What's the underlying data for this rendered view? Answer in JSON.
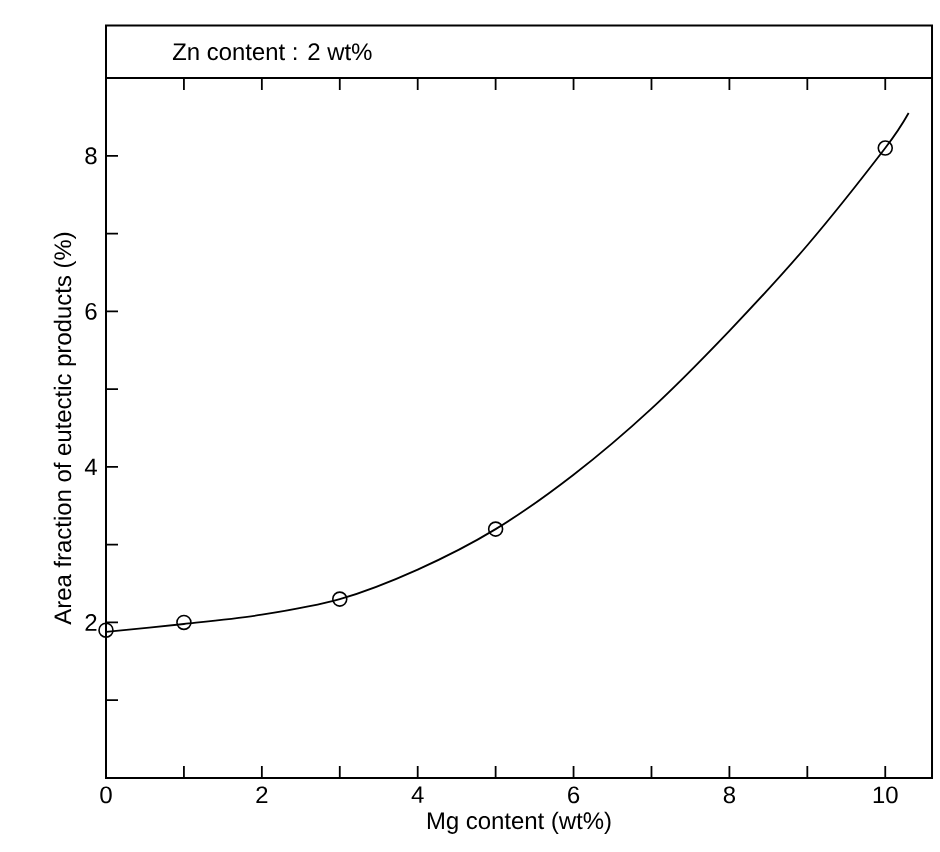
{
  "chart_data": {
    "type": "scatter",
    "title": "Zn content  :  2 wt%",
    "xlabel": "Mg content  (wt%)",
    "ylabel": "Area fraction of eutectic products (%)",
    "xlim": [
      0,
      10.6
    ],
    "ylim": [
      0,
      9
    ],
    "xticks": [
      0,
      {
        "value": 1,
        "label": null
      },
      2,
      {
        "value": 3,
        "label": null
      },
      4,
      {
        "value": 5,
        "label": null
      },
      6,
      {
        "value": 7,
        "label": null
      },
      8,
      {
        "value": 9,
        "label": null
      },
      10
    ],
    "yticks": [
      {
        "value": 1,
        "label": null
      },
      2,
      {
        "value": 3,
        "label": null
      },
      4,
      {
        "value": 5,
        "label": null
      },
      6,
      {
        "value": 7,
        "label": null
      },
      8
    ],
    "series": [
      {
        "type": "line",
        "color": "#000000",
        "marker": "none",
        "x": [
          0,
          1,
          2,
          3,
          4,
          5,
          6,
          7,
          8,
          9,
          10,
          10.3
        ],
        "values": [
          1.88,
          1.98,
          2.1,
          2.3,
          2.68,
          3.2,
          3.9,
          4.75,
          5.75,
          6.85,
          8.1,
          8.55
        ]
      },
      {
        "color": "#000000",
        "marker": "circle",
        "x": [
          0,
          1,
          3,
          5,
          10
        ],
        "values": [
          1.9,
          2.0,
          2.3,
          3.2,
          8.1
        ]
      }
    ]
  }
}
